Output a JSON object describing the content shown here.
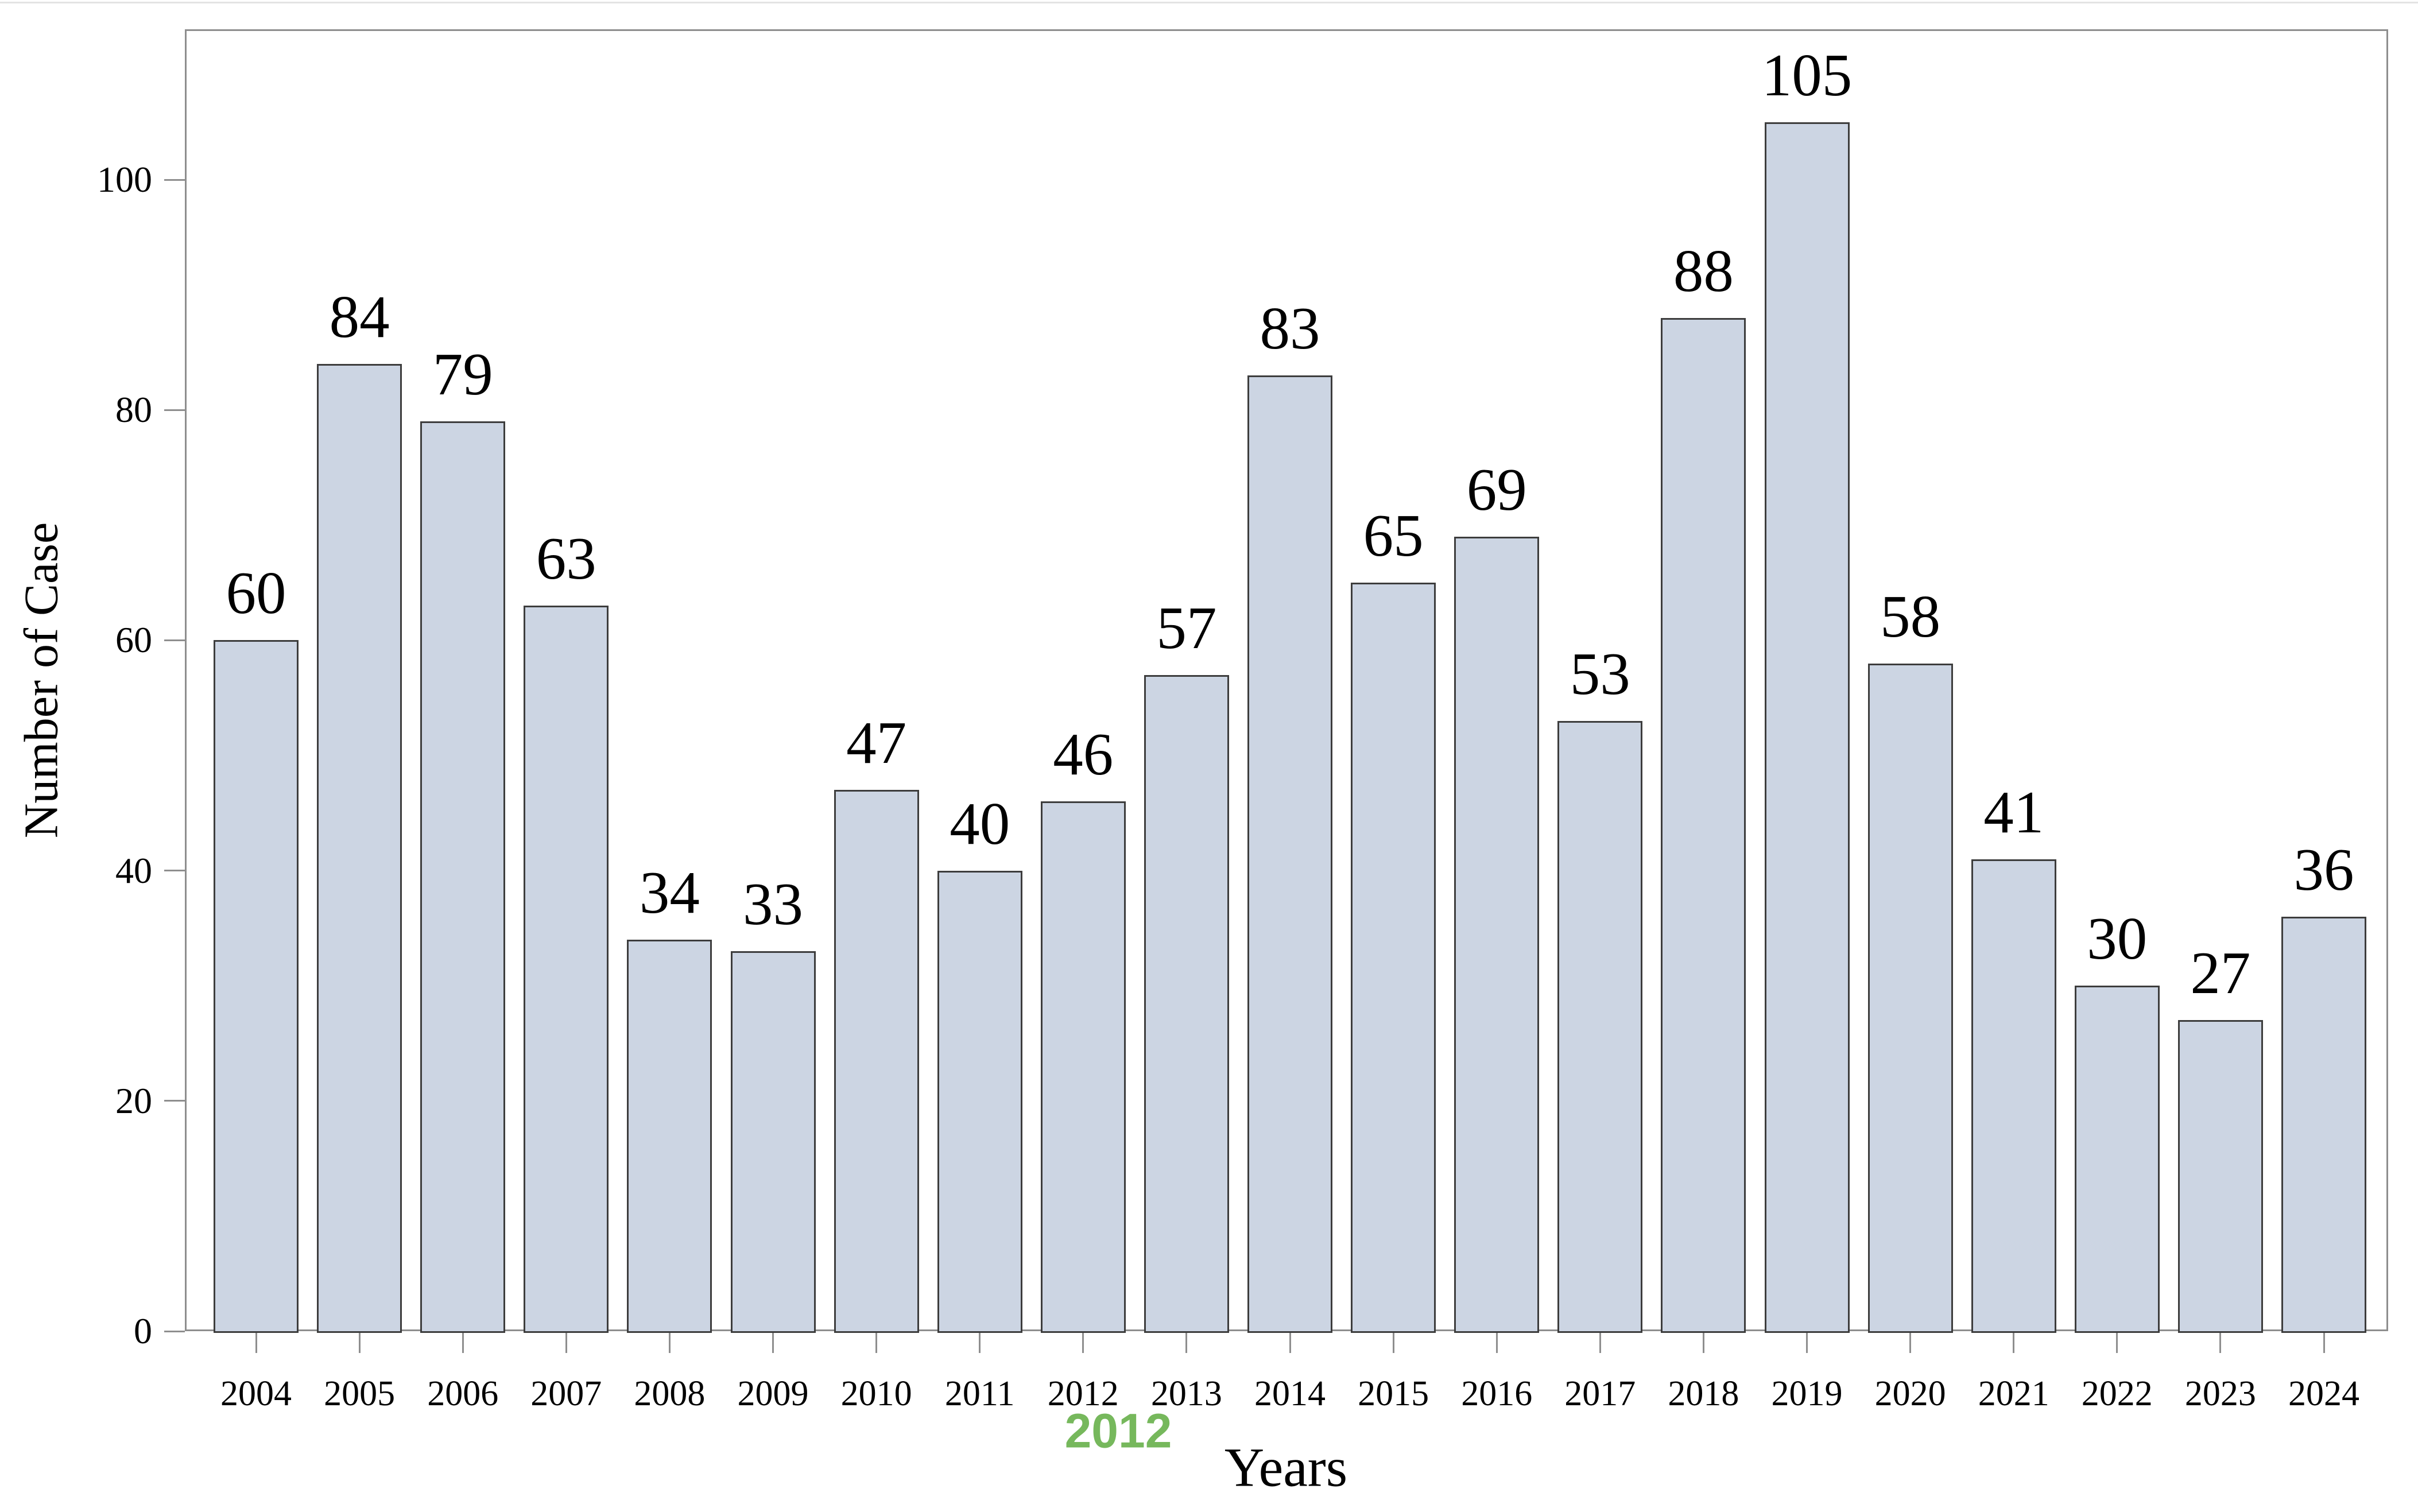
{
  "chart_data": {
    "type": "bar",
    "title": "",
    "xlabel": "Years",
    "ylabel": "Number of Case",
    "categories": [
      "2004",
      "2005",
      "2006",
      "2007",
      "2008",
      "2009",
      "2010",
      "2011",
      "2012",
      "2013",
      "2014",
      "2015",
      "2016",
      "2017",
      "2018",
      "2019",
      "2020",
      "2021",
      "2022",
      "2023",
      "2024"
    ],
    "values": [
      60,
      84,
      79,
      63,
      34,
      33,
      47,
      40,
      46,
      57,
      83,
      65,
      69,
      53,
      88,
      105,
      58,
      41,
      30,
      27,
      36
    ],
    "ylim": [
      0,
      113
    ],
    "yticks": [
      0,
      20,
      40,
      60,
      80,
      100
    ],
    "grid": "off",
    "legend": "none",
    "bar_fill_color": "#ccd5e3",
    "bar_border_color": "#3d3d3d",
    "frame_color": "#8e8e8e",
    "annotation": {
      "text": "2012",
      "color": "#76b85c",
      "attached_category": "2012"
    }
  }
}
